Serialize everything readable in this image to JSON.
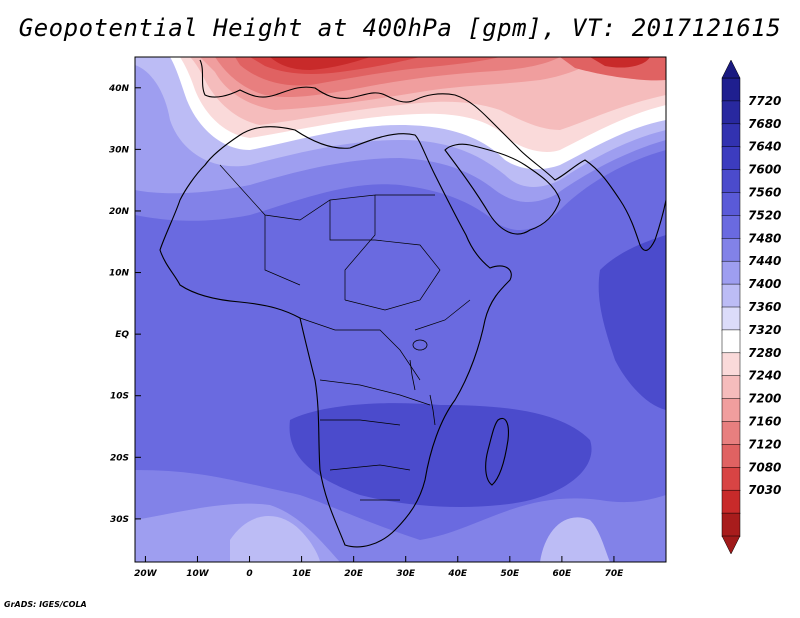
{
  "title": "Geopotential Height at 400hPa [gpm], VT: 2017121615",
  "credit": "GrADS: IGES/COLA",
  "map": {
    "region": "Africa and surrounding seas",
    "variable": "Geopotential Height",
    "level": "400hPa",
    "units": "gpm",
    "valid_time": "2017121615",
    "lon_range": [
      -22,
      80
    ],
    "lat_range": [
      -37,
      45
    ],
    "lat_ticks": [
      {
        "label": "40N",
        "lat": 40
      },
      {
        "label": "30N",
        "lat": 30
      },
      {
        "label": "20N",
        "lat": 20
      },
      {
        "label": "10N",
        "lat": 10
      },
      {
        "label": "EQ",
        "lat": 0
      },
      {
        "label": "10S",
        "lat": -10
      },
      {
        "label": "20S",
        "lat": -20
      },
      {
        "label": "30S",
        "lat": -30
      }
    ],
    "lon_ticks": [
      {
        "label": "20W",
        "lon": -20
      },
      {
        "label": "10W",
        "lon": -10
      },
      {
        "label": "0",
        "lon": 0
      },
      {
        "label": "10E",
        "lon": 10
      },
      {
        "label": "20E",
        "lon": 20
      },
      {
        "label": "30E",
        "lon": 30
      },
      {
        "label": "40E",
        "lon": 40
      },
      {
        "label": "50E",
        "lon": 50
      },
      {
        "label": "60E",
        "lon": 60
      },
      {
        "label": "70E",
        "lon": 70
      }
    ]
  },
  "colorbar": {
    "levels": [
      "7720",
      "7680",
      "7640",
      "7600",
      "7560",
      "7520",
      "7480",
      "7440",
      "7400",
      "7360",
      "7320",
      "7280",
      "7240",
      "7200",
      "7160",
      "7120",
      "7080",
      "7030"
    ],
    "colors": [
      "#1f1f8f",
      "#28289f",
      "#3232b0",
      "#3c3cbf",
      "#4b4bcc",
      "#5a5ad8",
      "#6a6ae0",
      "#8282e8",
      "#9e9ef0",
      "#bcbcf5",
      "#dcdcfa",
      "#ffffff",
      "#fadada",
      "#f5bcbc",
      "#f09e9e",
      "#e87f7f",
      "#e06262",
      "#d84444",
      "#c82a2a",
      "#a81c1c"
    ],
    "top_color": "#1a1a80",
    "bottom_color": "#a01a1a"
  }
}
